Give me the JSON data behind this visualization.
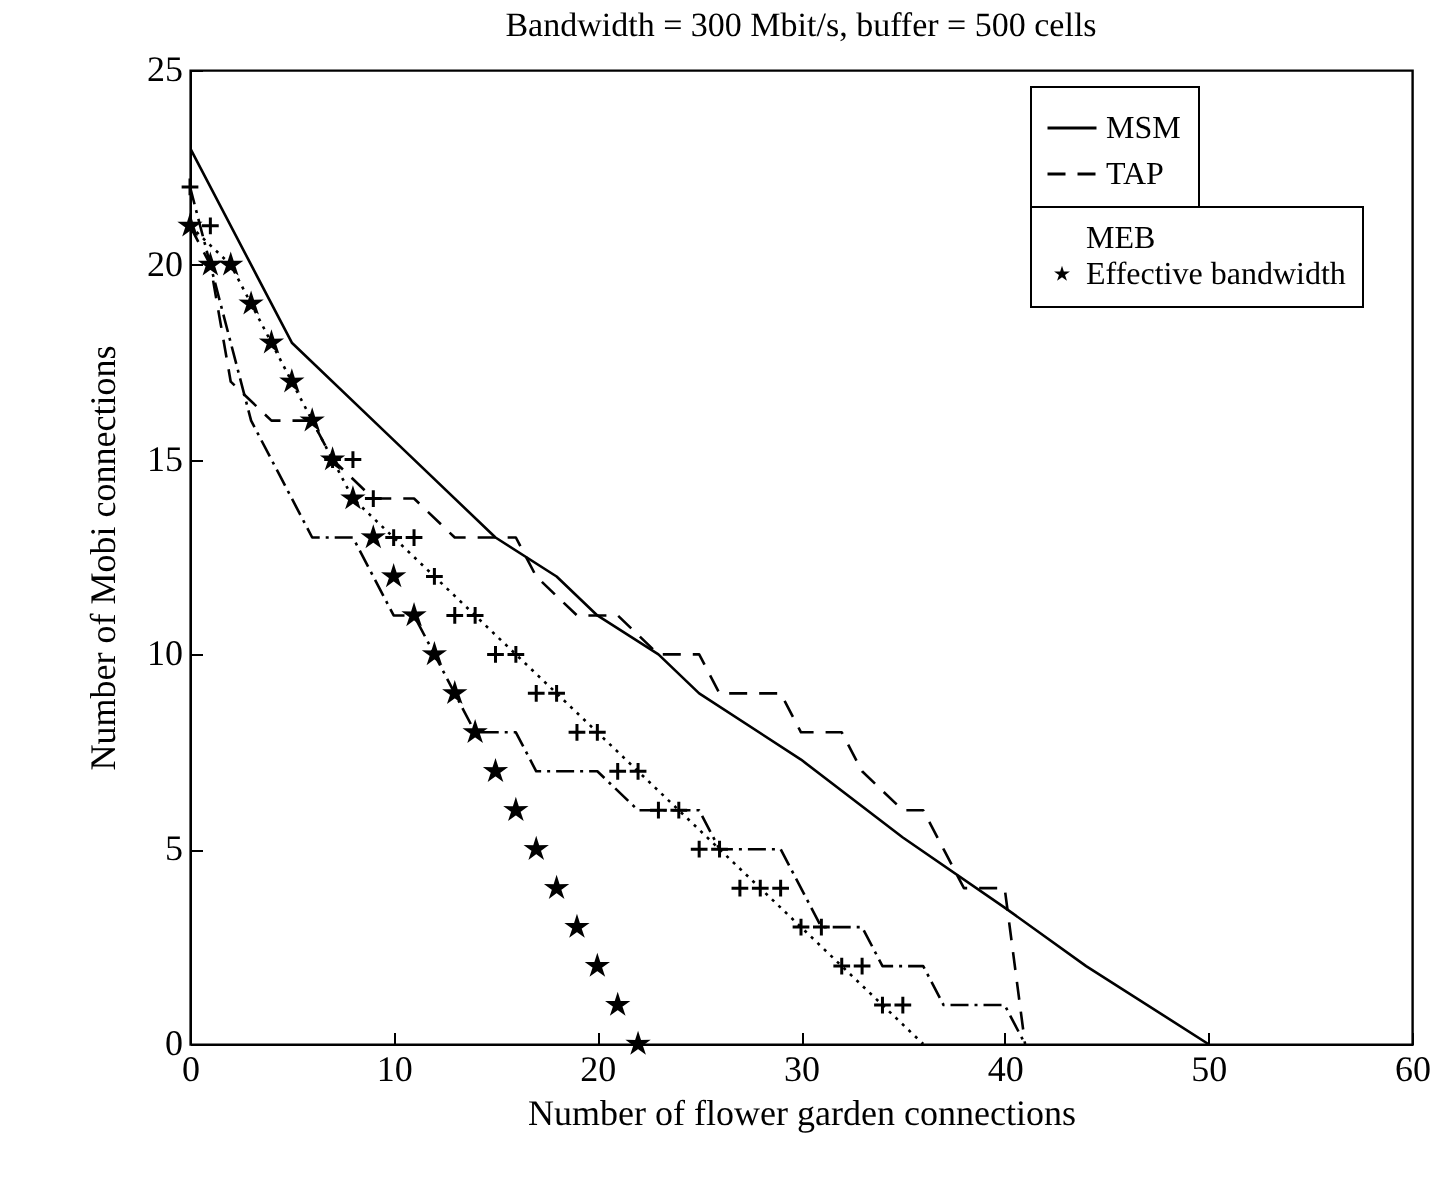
{
  "chart_data": {
    "type": "line",
    "title": "Bandwidth = 300 Mbit/s, buffer = 500 cells",
    "xlabel": "Number of flower garden connections",
    "ylabel": "Number of Mobi connections",
    "xlim": [
      0,
      60
    ],
    "xticks": [
      0,
      10,
      20,
      30,
      40,
      50,
      60
    ],
    "ylim": [
      0,
      25
    ],
    "yticks": [
      0,
      5,
      10,
      15,
      20,
      25
    ],
    "legend": "top right",
    "series": [
      {
        "name": "MSM",
        "color": "#000000",
        "line_style": "solid",
        "x": [
          0,
          5,
          10,
          15,
          18,
          20,
          23,
          25,
          30,
          35,
          40,
          44,
          50
        ],
        "values": [
          23,
          18,
          15.5,
          13,
          12,
          11,
          10,
          9,
          7.3,
          5.3,
          3.5,
          2,
          0
        ]
      },
      {
        "color": "#000000",
        "line_style": "dotted",
        "x": [
          0,
          2,
          4,
          6,
          8,
          10,
          12,
          14,
          16,
          18,
          20,
          22,
          24,
          26,
          28,
          30,
          32,
          34,
          36
        ],
        "values": [
          21,
          20,
          18,
          16,
          14,
          13,
          12,
          11,
          10,
          9,
          8,
          7,
          6,
          5,
          4,
          3,
          2,
          1,
          0
        ]
      },
      {
        "name": "TAP",
        "color": "#000000",
        "line_style": "dashed",
        "x": [
          0,
          1,
          2,
          4,
          6,
          7,
          9,
          11,
          13,
          16,
          17,
          19,
          21,
          23,
          25,
          26,
          29,
          30,
          32,
          33,
          35,
          36,
          37,
          38,
          40,
          41
        ],
        "values": [
          21,
          20,
          17,
          16,
          16,
          15,
          14,
          14,
          13,
          13,
          12,
          11,
          11,
          10,
          10,
          9,
          9,
          8,
          8,
          7,
          6,
          6,
          5,
          4,
          4,
          0
        ]
      },
      {
        "color": "#000000",
        "line_style": "dashdot",
        "x": [
          0,
          1,
          3,
          5,
          6,
          8,
          10,
          11,
          12,
          13,
          14,
          16,
          17,
          20,
          22,
          25,
          26,
          29,
          30,
          31,
          33,
          34,
          36,
          37,
          40,
          41
        ],
        "values": [
          22,
          20,
          16,
          14,
          13,
          13,
          11,
          11,
          10,
          9,
          8,
          8,
          7,
          7,
          6,
          6,
          5,
          5,
          4,
          3,
          3,
          2,
          2,
          1,
          1,
          0
        ]
      },
      {
        "name": "MEB",
        "type": "scatter",
        "marker": "cross",
        "color": "#000000",
        "x": [
          0,
          1,
          7,
          8,
          9,
          10,
          11,
          12,
          13,
          14,
          15,
          16,
          17,
          18,
          19,
          20,
          21,
          22,
          23,
          24,
          25,
          26,
          27,
          28,
          29,
          30,
          31,
          32,
          33,
          34,
          35
        ],
        "values": [
          22,
          21,
          15,
          15,
          14,
          13,
          13,
          12,
          11,
          11,
          10,
          10,
          9,
          9,
          8,
          8,
          7,
          7,
          6,
          6,
          5,
          5,
          4,
          4,
          4,
          3,
          3,
          2,
          2,
          1,
          1
        ]
      },
      {
        "name": "Effective bandwidth",
        "type": "scatter",
        "marker": "star",
        "color": "#000000",
        "x": [
          0,
          1,
          2,
          3,
          4,
          5,
          6,
          7,
          8,
          9,
          10,
          11,
          12,
          13,
          14,
          15,
          16,
          17,
          18,
          19,
          20,
          21,
          22
        ],
        "values": [
          21,
          20,
          20,
          19,
          18,
          17,
          16,
          15,
          14,
          13,
          12,
          11,
          10,
          9,
          8,
          7,
          6,
          5,
          4,
          3,
          2,
          1,
          0
        ]
      }
    ]
  }
}
